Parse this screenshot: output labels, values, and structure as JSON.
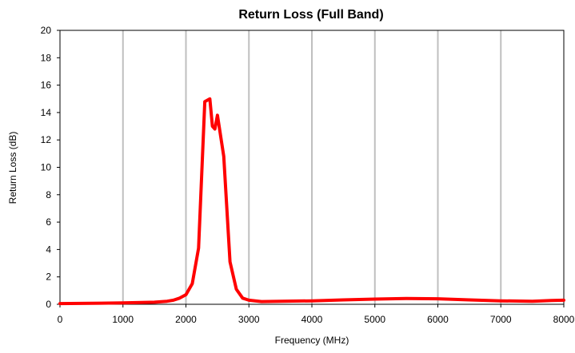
{
  "chart_data": {
    "type": "line",
    "title": "Return Loss (Full Band)",
    "xlabel": "Frequency (MHz)",
    "ylabel": "Return Loss (dB)",
    "xlim": [
      0,
      8000
    ],
    "ylim": [
      0,
      20
    ],
    "xticks": [
      0,
      1000,
      2000,
      3000,
      4000,
      5000,
      6000,
      7000,
      8000
    ],
    "yticks": [
      0,
      2,
      4,
      6,
      8,
      10,
      12,
      14,
      16,
      18,
      20
    ],
    "grid": {
      "vertical": true,
      "horizontal": false
    },
    "legend": "none",
    "colors": {
      "line": "#ff0000",
      "grid": "#bfbfbf",
      "axis": "#000000"
    },
    "series": [
      {
        "x": [
          0,
          500,
          1000,
          1500,
          1700,
          1800,
          1900,
          2000,
          2100,
          2200,
          2300,
          2380,
          2420,
          2460,
          2500,
          2600,
          2700,
          2800,
          2900,
          3000,
          3200,
          3500,
          4000,
          4500,
          5000,
          5500,
          6000,
          6500,
          7000,
          7500,
          7800,
          8000
        ],
        "y": [
          0.05,
          0.07,
          0.1,
          0.15,
          0.22,
          0.3,
          0.45,
          0.7,
          1.5,
          4.1,
          14.8,
          15.0,
          13.0,
          12.8,
          13.8,
          10.8,
          3.1,
          1.1,
          0.45,
          0.3,
          0.2,
          0.22,
          0.25,
          0.32,
          0.38,
          0.42,
          0.4,
          0.32,
          0.25,
          0.22,
          0.28,
          0.3
        ]
      }
    ]
  }
}
